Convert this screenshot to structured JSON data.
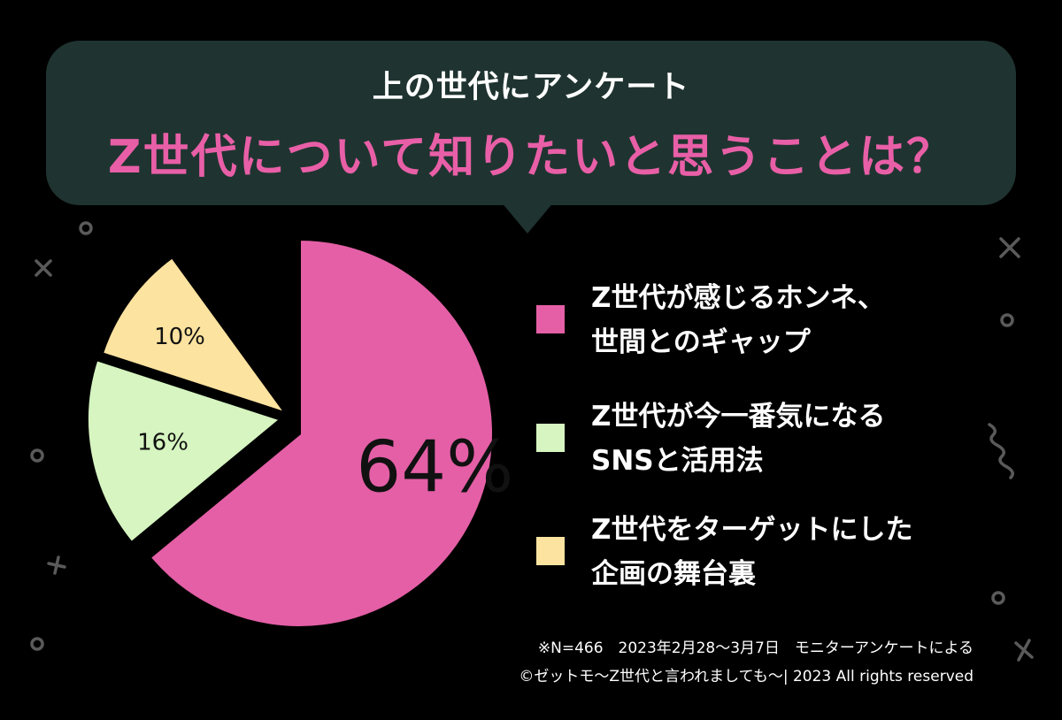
{
  "header": {
    "survey_title": "上の世代にアンケート",
    "question": "Z世代について知りたいと思うことは？"
  },
  "chart_data": {
    "type": "pie",
    "title": "Z世代について知りたいと思うことは？",
    "categories": [
      "Z世代が感じるホンネ、世間とのギャップ",
      "Z世代が今一番気になるSNSと活用法",
      "Z世代をターゲットにした企画の舞台裏"
    ],
    "values": [
      64,
      16,
      10
    ],
    "labels": [
      "64%",
      "16%",
      "10%"
    ],
    "colors": [
      "#e45fa6",
      "#d6f5c0",
      "#fde3a0"
    ],
    "legend_placement": "right"
  },
  "legend": {
    "items": [
      {
        "line1": "Z世代が感じるホンネ、",
        "line2": "世間とのギャップ",
        "color": "#e45fa6"
      },
      {
        "line1": "Z世代が今一番気になる",
        "line2": "SNSと活用法",
        "color": "#d6f5c0"
      },
      {
        "line1": "Z世代をターゲットにした",
        "line2": "企画の舞台裏",
        "color": "#fde3a0"
      }
    ]
  },
  "footer": {
    "note": "※N=466　2023年2月28～3月7日　モニターアンケートによる",
    "copyright": "©ゼットモ～Z世代と言われましても～| 2023 All rights reserved"
  }
}
